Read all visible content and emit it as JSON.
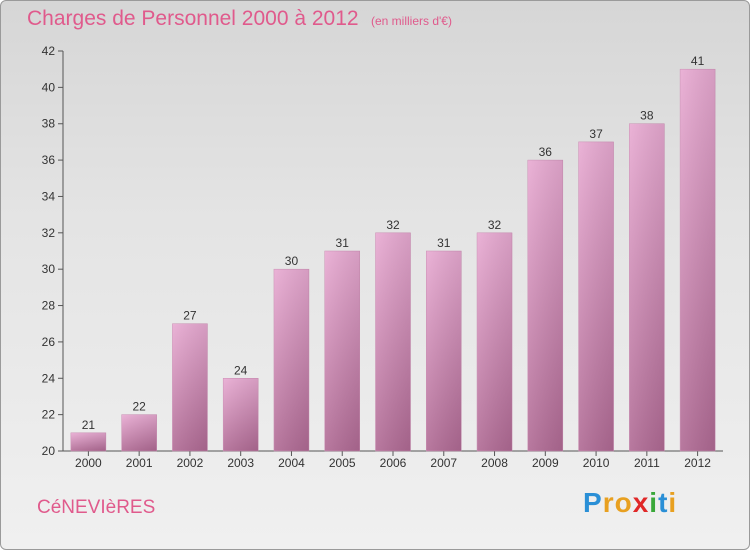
{
  "chart_data": {
    "type": "bar",
    "title": "Charges de Personnel 2000 à 2012",
    "subtitle": "(en milliers d'€)",
    "categories": [
      "2000",
      "2001",
      "2002",
      "2003",
      "2004",
      "2005",
      "2006",
      "2007",
      "2008",
      "2009",
      "2010",
      "2011",
      "2012"
    ],
    "values": [
      21,
      22,
      27,
      24,
      30,
      31,
      32,
      31,
      32,
      36,
      37,
      38,
      41
    ],
    "ylim": [
      20,
      42
    ],
    "yticks": [
      20,
      22,
      24,
      26,
      28,
      30,
      32,
      34,
      36,
      38,
      40,
      42
    ],
    "xlabel": "",
    "ylabel": "",
    "grid": false,
    "bar_color": "#e0a0c8"
  },
  "footer": {
    "commune": "CéNEVIèRES",
    "brand_letters": [
      {
        "ch": "P",
        "color": "#2a8fd6"
      },
      {
        "ch": "r",
        "color": "#e8a020"
      },
      {
        "ch": "o",
        "color": "#e8a020"
      },
      {
        "ch": "x",
        "color": "#e02828"
      },
      {
        "ch": "i",
        "color": "#3aa83a"
      },
      {
        "ch": "t",
        "color": "#2a8fd6"
      },
      {
        "ch": "i",
        "color": "#e8a020"
      }
    ]
  }
}
